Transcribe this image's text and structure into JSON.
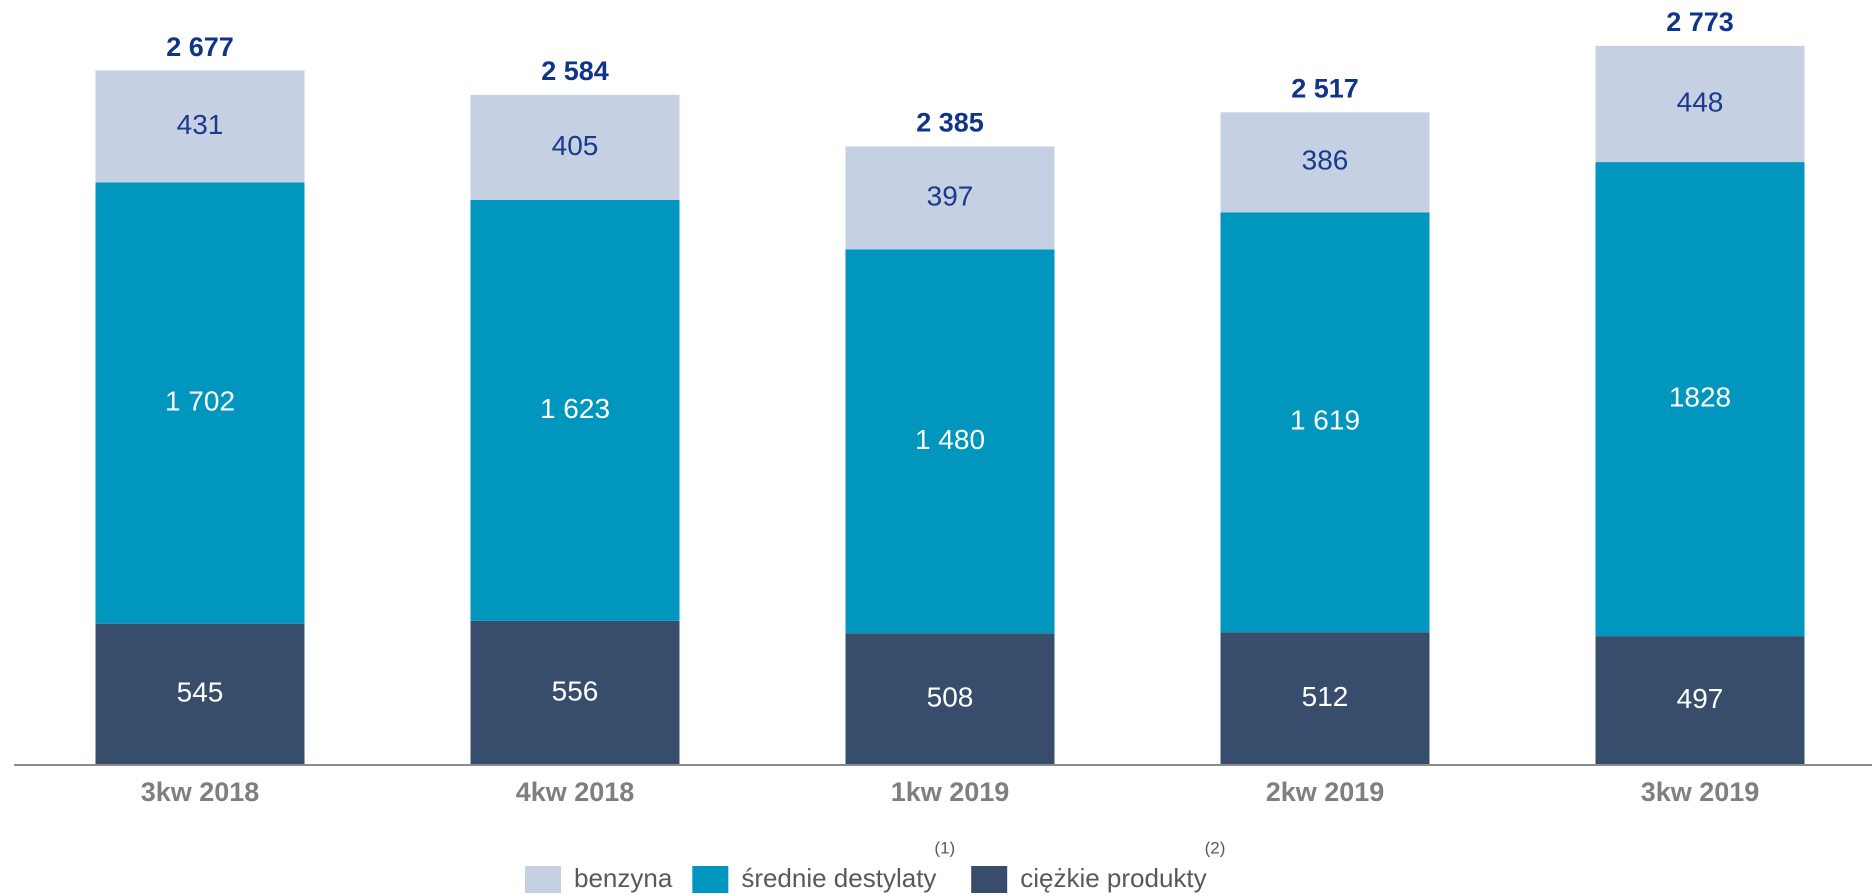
{
  "chart_data": {
    "type": "stacked-bar",
    "categories": [
      "3kw 2018",
      "4kw 2018",
      "1kw 2019",
      "2kw 2019",
      "3kw 2019"
    ],
    "series": [
      {
        "name": "ciężkie produkty",
        "superscript": "(2)",
        "color": "#384c6c",
        "label_color": "#ffffff",
        "values": [
          545,
          556,
          508,
          512,
          497
        ]
      },
      {
        "name": "średnie destylaty",
        "superscript": "(1)",
        "color": "#0096bd",
        "label_color": "#ffffff",
        "values": [
          1702,
          1623,
          1480,
          1619,
          1828
        ],
        "value_labels": [
          "1 702",
          "1 623",
          "1 480",
          "1 619",
          "1828"
        ]
      },
      {
        "name": "benzyna",
        "color": "#c5d0e2",
        "label_color": "#1a3a8c",
        "values": [
          431,
          405,
          397,
          386,
          448
        ]
      }
    ],
    "totals": [
      2677,
      2584,
      2385,
      2517,
      2773
    ],
    "total_labels": [
      "2 677",
      "2 584",
      "2 385",
      "2 517",
      "2 773"
    ],
    "ylim": [
      0,
      2950
    ]
  }
}
